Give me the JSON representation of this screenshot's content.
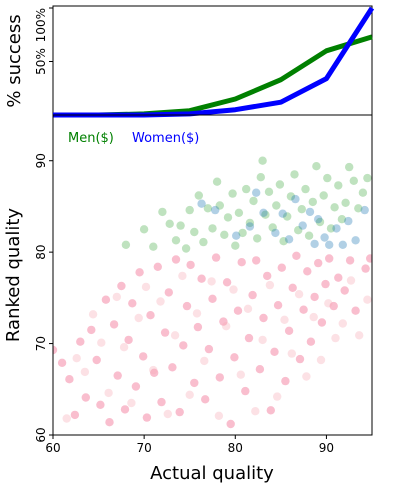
{
  "chart_data": [
    {
      "type": "line",
      "panel": "top",
      "title": "",
      "xlabel": "",
      "ylabel": "% success",
      "xlim": [
        60,
        95
      ],
      "ylim": [
        0,
        1.0
      ],
      "yticks": [
        0.5,
        1.0
      ],
      "ytick_labels": [
        "50%",
        "100%"
      ],
      "xtick_labels_visible": false,
      "grid": false,
      "series": [
        {
          "name": "",
          "color": "#008000",
          "x": [
            60,
            65,
            70,
            75,
            80,
            85,
            90,
            95
          ],
          "y": [
            0.0,
            0.0,
            0.01,
            0.04,
            0.15,
            0.33,
            0.6,
            0.73
          ]
        },
        {
          "name": "",
          "color": "#0000ff",
          "x": [
            60,
            65,
            70,
            75,
            80,
            85,
            90,
            95
          ],
          "y": [
            0.0,
            0.0,
            0.0,
            0.01,
            0.05,
            0.12,
            0.34,
            1.0
          ]
        }
      ]
    },
    {
      "type": "scatter",
      "panel": "bottom",
      "title": "",
      "xlabel": "Actual quality",
      "ylabel": "Ranked quality",
      "xlim": [
        60,
        95
      ],
      "ylim": [
        60,
        95
      ],
      "xticks": [
        60,
        70,
        80,
        90
      ],
      "yticks": [
        60,
        70,
        80,
        90
      ],
      "grid": false,
      "legend_position": "top-left",
      "legend": [
        {
          "label": "Men($)",
          "color": "#008000"
        },
        {
          "label": "Women($)",
          "color": "#0000ff"
        }
      ],
      "series": [
        {
          "name": "Men($)",
          "color": "#2ca02c",
          "opacity": 0.3,
          "points": [
            [
              68,
              80.8
            ],
            [
              70,
              82.5
            ],
            [
              71,
              80.6
            ],
            [
              72,
              84.4
            ],
            [
              72.8,
              83.1
            ],
            [
              73.5,
              81.3
            ],
            [
              74,
              82.9
            ],
            [
              74.6,
              80.4
            ],
            [
              75,
              84.6
            ],
            [
              75.5,
              82.2
            ],
            [
              76,
              86.2
            ],
            [
              76.5,
              81.1
            ],
            [
              77,
              84.8
            ],
            [
              77.5,
              82.6
            ],
            [
              78,
              87.7
            ],
            [
              78.3,
              85.1
            ],
            [
              78.8,
              81.9
            ],
            [
              79.2,
              83.8
            ],
            [
              79.7,
              86.4
            ],
            [
              80,
              80.7
            ],
            [
              80.4,
              84.3
            ],
            [
              80.8,
              82.1
            ],
            [
              81.2,
              86.9
            ],
            [
              81.6,
              83.2
            ],
            [
              82,
              85.6
            ],
            [
              82.4,
              81.5
            ],
            [
              82.8,
              88.2
            ],
            [
              83,
              90
            ],
            [
              83.3,
              84.1
            ],
            [
              83.7,
              86.6
            ],
            [
              84.1,
              82.7
            ],
            [
              84.5,
              85.1
            ],
            [
              84.9,
              87.4
            ],
            [
              85.3,
              81.2
            ],
            [
              85.7,
              83.9
            ],
            [
              86.1,
              86.1
            ],
            [
              86.5,
              88.5
            ],
            [
              86.9,
              82.4
            ],
            [
              87.3,
              84.7
            ],
            [
              87.7,
              86.9
            ],
            [
              88.1,
              81.8
            ],
            [
              88.5,
              85.5
            ],
            [
              88.9,
              89.4
            ],
            [
              89.3,
              83.3
            ],
            [
              89.7,
              86.2
            ],
            [
              90.1,
              88.1
            ],
            [
              90.5,
              82.6
            ],
            [
              90.9,
              84.9
            ],
            [
              91.3,
              87.3
            ],
            [
              91.7,
              83.6
            ],
            [
              92.1,
              85.4
            ],
            [
              92.5,
              89.3
            ],
            [
              93,
              87.8
            ],
            [
              93.5,
              84.8
            ],
            [
              94,
              86.5
            ],
            [
              94.5,
              88.1
            ]
          ]
        },
        {
          "name": "Women($)",
          "color": "#1f77b4",
          "opacity": 0.35,
          "points": [
            [
              76.3,
              85.3
            ],
            [
              77.8,
              84.6
            ],
            [
              80.1,
              81.8
            ],
            [
              81.6,
              82.8
            ],
            [
              82.3,
              86.5
            ],
            [
              83.1,
              84.3
            ],
            [
              84.4,
              82.1
            ],
            [
              85.2,
              84.2
            ],
            [
              85.9,
              81.4
            ],
            [
              86.6,
              85.8
            ],
            [
              87.4,
              82.9
            ],
            [
              88.2,
              84.4
            ],
            [
              88.7,
              80.9
            ],
            [
              89.1,
              83.6
            ],
            [
              89.8,
              81.6
            ],
            [
              90.3,
              80.8
            ],
            [
              91.1,
              82.6
            ],
            [
              91.8,
              80.8
            ],
            [
              92.4,
              83.4
            ],
            [
              93.2,
              81.3
            ],
            [
              94.2,
              84.6
            ]
          ]
        },
        {
          "name": "",
          "color": "#e8174e",
          "opacity": 0.28,
          "points": [
            [
              60,
              69.3
            ],
            [
              61,
              67.9
            ],
            [
              61.8,
              66.1
            ],
            [
              62.4,
              62.2
            ],
            [
              63,
              70.2
            ],
            [
              63.6,
              64.1
            ],
            [
              64.2,
              71.5
            ],
            [
              64.8,
              68.2
            ],
            [
              65.2,
              63.3
            ],
            [
              65.8,
              74.8
            ],
            [
              66.2,
              61.4
            ],
            [
              66.7,
              72.1
            ],
            [
              67.1,
              66.5
            ],
            [
              67.5,
              76.3
            ],
            [
              67.9,
              62.8
            ],
            [
              68.3,
              70.4
            ],
            [
              68.7,
              74.4
            ],
            [
              69.1,
              65.3
            ],
            [
              69.5,
              77.8
            ],
            [
              69.9,
              68.6
            ],
            [
              70.3,
              61.9
            ],
            [
              70.7,
              73.1
            ],
            [
              71.1,
              66.8
            ],
            [
              71.5,
              78.4
            ],
            [
              71.9,
              63.6
            ],
            [
              72.3,
              71.2
            ],
            [
              72.7,
              75.6
            ],
            [
              73.1,
              67.4
            ],
            [
              73.5,
              79.2
            ],
            [
              73.9,
              62.5
            ],
            [
              74.3,
              69.8
            ],
            [
              74.7,
              74.1
            ],
            [
              75.1,
              78.6
            ],
            [
              75.5,
              65.7
            ],
            [
              75.9,
              71.8
            ],
            [
              76.3,
              77.1
            ],
            [
              76.7,
              63.9
            ],
            [
              77.1,
              69.4
            ],
            [
              77.5,
              74.9
            ],
            [
              77.9,
              79.4
            ],
            [
              78.3,
              66.3
            ],
            [
              78.7,
              72.4
            ],
            [
              79.1,
              76.7
            ],
            [
              79.5,
              61.2
            ],
            [
              79.9,
              68.5
            ],
            [
              80.3,
              73.6
            ],
            [
              80.7,
              78.9
            ],
            [
              81.1,
              64.8
            ],
            [
              81.5,
              70.6
            ],
            [
              81.9,
              75.3
            ],
            [
              82.3,
              79.1
            ],
            [
              82.7,
              67.2
            ],
            [
              83.1,
              72.8
            ],
            [
              83.5,
              77.4
            ],
            [
              83.9,
              62.7
            ],
            [
              84.3,
              69.1
            ],
            [
              84.7,
              74.2
            ],
            [
              85.1,
              78.3
            ],
            [
              85.5,
              65.9
            ],
            [
              85.9,
              71.4
            ],
            [
              86.3,
              76.1
            ],
            [
              86.7,
              79.6
            ],
            [
              87.1,
              68.3
            ],
            [
              87.5,
              73.7
            ],
            [
              87.9,
              77.9
            ],
            [
              88.3,
              70.2
            ],
            [
              88.7,
              75.1
            ],
            [
              89.1,
              78.8
            ],
            [
              89.5,
              72.3
            ],
            [
              89.9,
              76.5
            ],
            [
              90.3,
              79.3
            ],
            [
              90.8,
              74.1
            ],
            [
              91.3,
              77.2
            ],
            [
              92,
              75.8
            ],
            [
              92.6,
              79.1
            ],
            [
              93.2,
              73.6
            ],
            [
              94.3,
              78.2
            ],
            [
              94.8,
              79.3
            ]
          ]
        },
        {
          "name": "",
          "color": "#f7a8b5",
          "opacity": 0.35,
          "points": [
            [
              61.5,
              61.8
            ],
            [
              62.6,
              68.4
            ],
            [
              63.5,
              66.9
            ],
            [
              64.4,
              73.2
            ],
            [
              65.3,
              70.1
            ],
            [
              66.1,
              64.6
            ],
            [
              67,
              75.1
            ],
            [
              67.8,
              69.6
            ],
            [
              68.6,
              63.5
            ],
            [
              69.4,
              72.8
            ],
            [
              70.2,
              76.2
            ],
            [
              71,
              67.1
            ],
            [
              71.8,
              74.6
            ],
            [
              72.6,
              62.3
            ],
            [
              73.4,
              70.9
            ],
            [
              74.2,
              77.4
            ],
            [
              75,
              64.4
            ],
            [
              75.8,
              73.3
            ],
            [
              76.6,
              68.1
            ],
            [
              77.4,
              76.8
            ],
            [
              78.2,
              62.1
            ],
            [
              79,
              71.9
            ],
            [
              79.8,
              75.9
            ],
            [
              80.6,
              66.6
            ],
            [
              81.4,
              73.8
            ],
            [
              82.2,
              62.6
            ],
            [
              83,
              70.4
            ],
            [
              83.8,
              76.4
            ],
            [
              84.6,
              64.2
            ],
            [
              85.4,
              72.6
            ],
            [
              86.2,
              68.9
            ],
            [
              87,
              75.4
            ],
            [
              87.8,
              66.4
            ],
            [
              88.6,
              72.9
            ],
            [
              89.4,
              68.2
            ],
            [
              90.2,
              74.4
            ],
            [
              91,
              70.6
            ],
            [
              91.8,
              72.2
            ],
            [
              92.7,
              76.9
            ],
            [
              93.6,
              70.9
            ],
            [
              94.5,
              74.8
            ]
          ]
        }
      ]
    }
  ]
}
